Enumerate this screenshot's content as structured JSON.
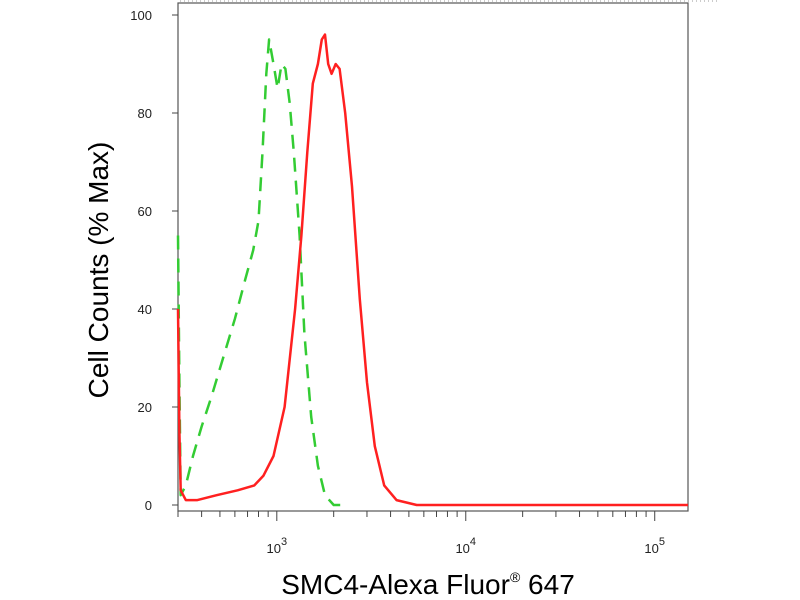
{
  "chart_data": {
    "type": "line",
    "title": "",
    "xlabel": "SMC4-Alexa Fluor",
    "xlabel_superscript": "®",
    "xlabel_suffix": " 647",
    "ylabel": "Cell Counts (% Max)",
    "x_scale": "log",
    "xlim": [
      300,
      150000
    ],
    "ylim": [
      0,
      100
    ],
    "y_ticks": [
      0,
      20,
      40,
      60,
      80,
      100
    ],
    "y_tick_labels": [
      "0",
      "20",
      "40",
      "60",
      "80",
      "100"
    ],
    "x_major_ticks": [
      {
        "value": 1000,
        "base": "10",
        "exp": "3"
      },
      {
        "value": 10000,
        "base": "10",
        "exp": "4"
      },
      {
        "value": 100000,
        "base": "10",
        "exp": "5"
      }
    ],
    "grid": false,
    "legend": "none",
    "series": [
      {
        "color": "#33cc33",
        "style": "dashed",
        "points": [
          [
            300,
            55
          ],
          [
            305,
            25
          ],
          [
            310,
            2
          ],
          [
            330,
            4
          ],
          [
            360,
            10
          ],
          [
            400,
            16
          ],
          [
            450,
            22
          ],
          [
            520,
            30
          ],
          [
            600,
            38
          ],
          [
            680,
            46
          ],
          [
            750,
            52
          ],
          [
            800,
            58
          ],
          [
            840,
            72
          ],
          [
            880,
            88
          ],
          [
            910,
            95
          ],
          [
            960,
            90
          ],
          [
            1010,
            85
          ],
          [
            1060,
            90
          ],
          [
            1110,
            89
          ],
          [
            1170,
            82
          ],
          [
            1230,
            72
          ],
          [
            1320,
            55
          ],
          [
            1400,
            35
          ],
          [
            1520,
            18
          ],
          [
            1650,
            8
          ],
          [
            1800,
            2
          ],
          [
            2000,
            0
          ],
          [
            2400,
            0
          ]
        ]
      },
      {
        "color": "#ff2020",
        "style": "solid",
        "points": [
          [
            300,
            40
          ],
          [
            305,
            15
          ],
          [
            310,
            3
          ],
          [
            330,
            1
          ],
          [
            380,
            1
          ],
          [
            480,
            2
          ],
          [
            620,
            3
          ],
          [
            760,
            4
          ],
          [
            850,
            6
          ],
          [
            960,
            10
          ],
          [
            1100,
            20
          ],
          [
            1250,
            40
          ],
          [
            1350,
            55
          ],
          [
            1450,
            72
          ],
          [
            1550,
            86
          ],
          [
            1650,
            90
          ],
          [
            1730,
            95
          ],
          [
            1800,
            96
          ],
          [
            1870,
            90
          ],
          [
            1950,
            88
          ],
          [
            2050,
            90
          ],
          [
            2150,
            89
          ],
          [
            2300,
            80
          ],
          [
            2500,
            65
          ],
          [
            2750,
            42
          ],
          [
            3000,
            25
          ],
          [
            3300,
            12
          ],
          [
            3700,
            4
          ],
          [
            4300,
            1
          ],
          [
            5500,
            0
          ],
          [
            10000,
            0
          ],
          [
            50000,
            0
          ],
          [
            150000,
            0
          ]
        ]
      }
    ]
  }
}
